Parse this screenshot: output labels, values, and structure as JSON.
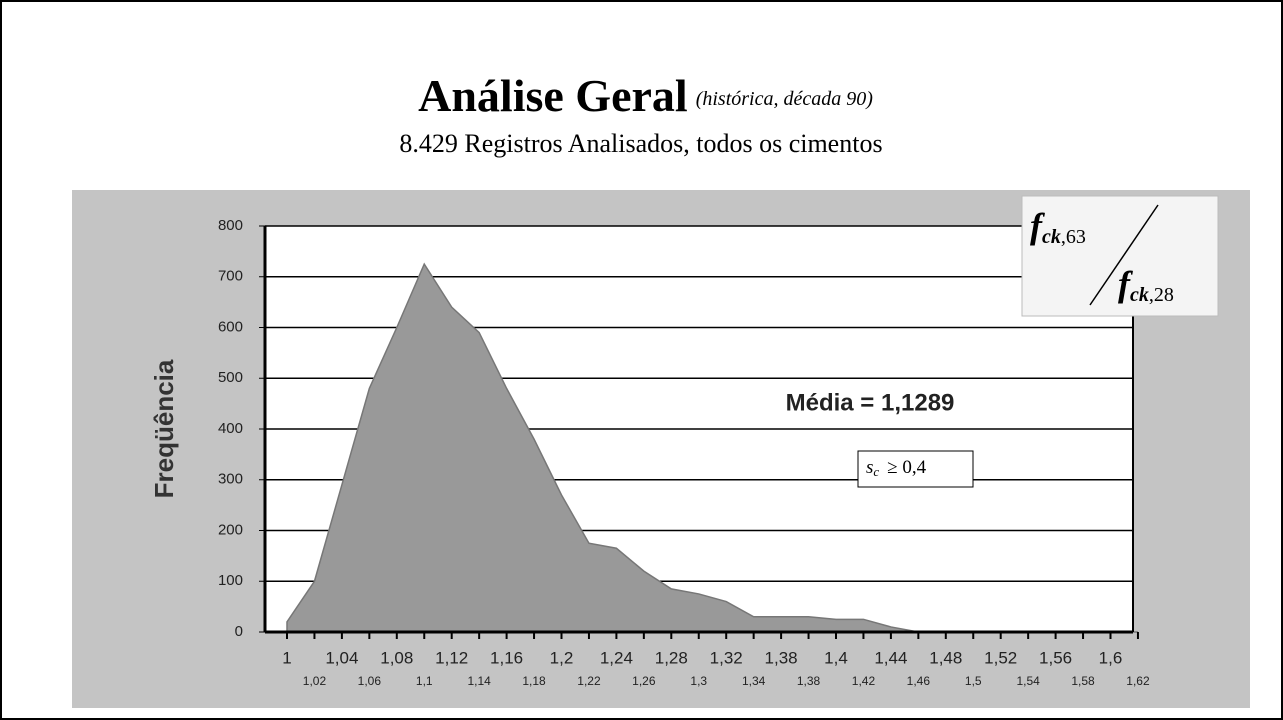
{
  "chart_data": {
    "type": "area",
    "title": "Análise Geral",
    "title_note": "(histórica, década 90)",
    "subtitle": "8.429 Registros Analisados, todos os cimentos",
    "y_label": "Freqüência",
    "categories": [
      "1",
      "1,02",
      "1,04",
      "1,06",
      "1,08",
      "1,1",
      "1,12",
      "1,14",
      "1,16",
      "1,18",
      "1,2",
      "1,22",
      "1,24",
      "1,26",
      "1,28",
      "1,3",
      "1,32",
      "1,34",
      "1,38",
      "1,38",
      "1,4",
      "1,42",
      "1,44",
      "1,46",
      "1,48",
      "1,5",
      "1,52",
      "1,54",
      "1,56",
      "1,58",
      "1,6",
      "1,62"
    ],
    "values": [
      20,
      100,
      290,
      480,
      600,
      725,
      640,
      590,
      480,
      380,
      270,
      175,
      165,
      120,
      85,
      75,
      60,
      30,
      30,
      30,
      25,
      25,
      10,
      0,
      0,
      0,
      0,
      0,
      0,
      0,
      0,
      0
    ],
    "color": "#999999",
    "ylim": [
      0,
      800
    ],
    "yticks": [
      0,
      100,
      200,
      300,
      400,
      500,
      600,
      700,
      800
    ],
    "grid": true,
    "annotation": "Média = 1,1289",
    "condition": {
      "symbol": "s",
      "subscript": "c",
      "text": "≥ 0,4"
    },
    "formula": {
      "numerator": {
        "symbol": "f",
        "subscript": "ck",
        "index": ",63"
      },
      "denominator": {
        "symbol": "f",
        "subscript": "ck",
        "index": ",28"
      }
    }
  }
}
